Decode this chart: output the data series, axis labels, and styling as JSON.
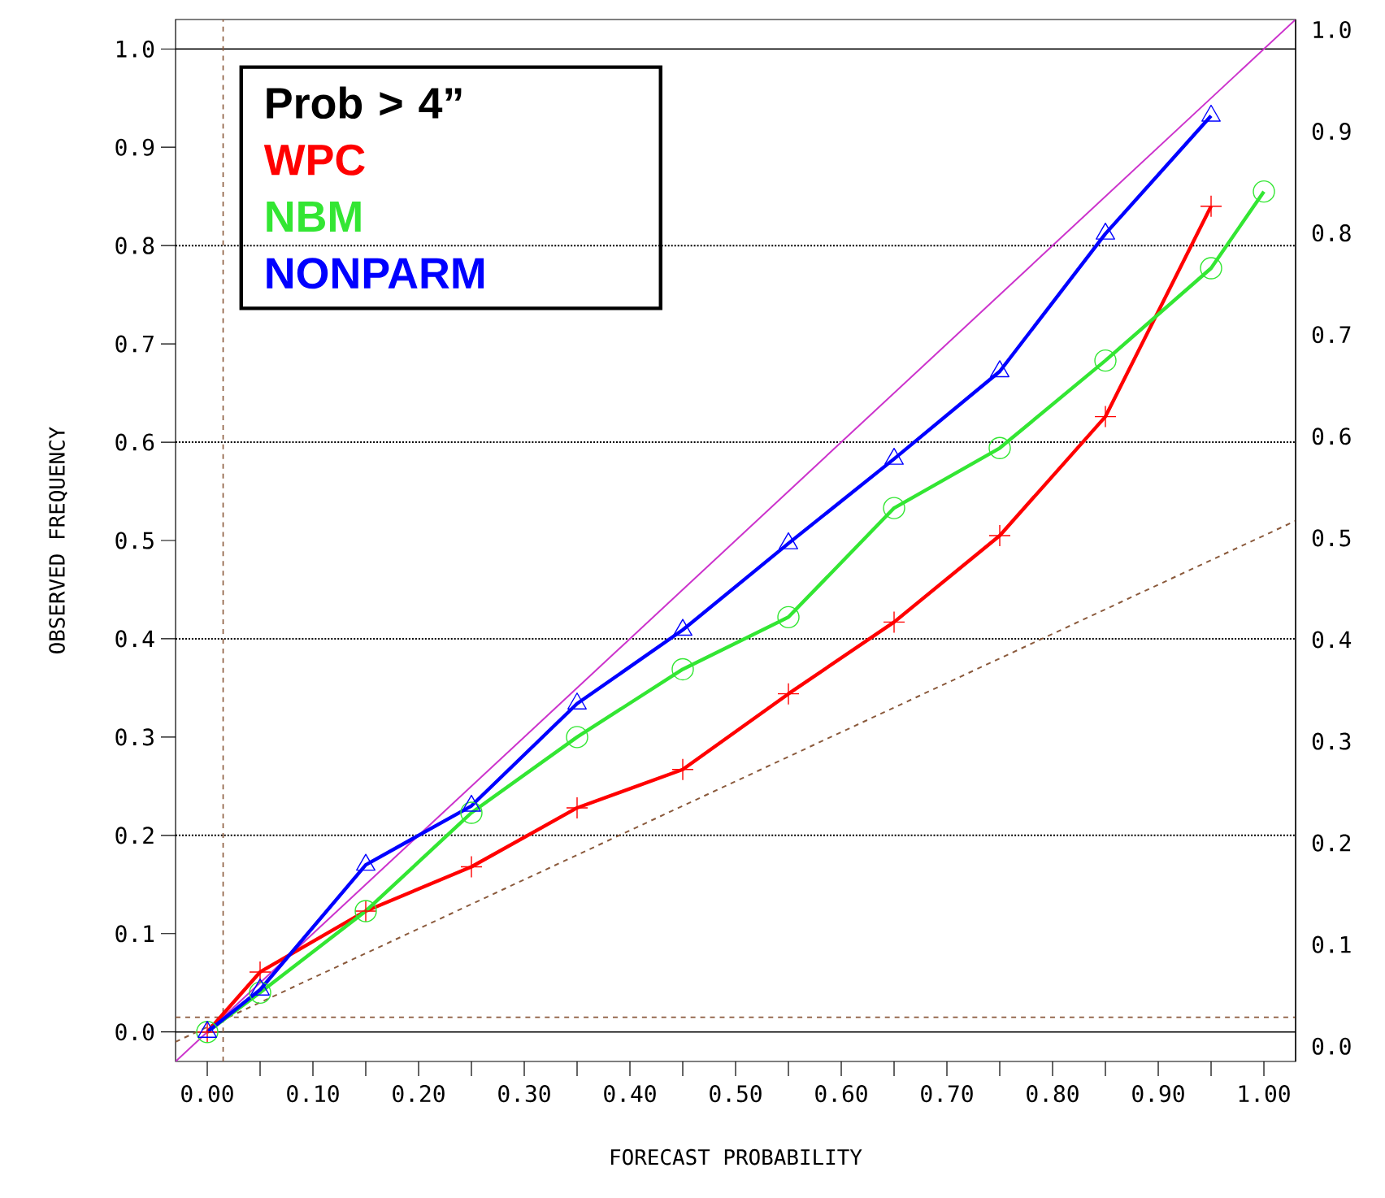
{
  "chart_data": {
    "type": "line",
    "xlabel": "FORECAST PROBABILITY",
    "ylabel": "OBSERVED FREQUENCY",
    "legend_title": "**Prob > 4”**",
    "legend": "top left",
    "x": [
      0.0,
      0.05,
      0.15,
      0.25,
      0.35,
      0.45,
      0.55,
      0.65,
      0.75,
      0.85,
      0.95
    ],
    "xlim": [
      -0.03,
      1.03
    ],
    "ylim": [
      -0.03,
      1.03
    ],
    "y2lim": [
      -0.015,
      1.01
    ],
    "xticks": [
      {
        "value": 0,
        "label": "0.00"
      },
      {
        "value": 0.05,
        "label": null
      },
      {
        "value": 0.1,
        "label": "0.10"
      },
      {
        "value": 0.15,
        "label": null
      },
      {
        "value": 0.2,
        "label": "0.20"
      },
      {
        "value": 0.25,
        "label": null
      },
      {
        "value": 0.3,
        "label": "0.30"
      },
      {
        "value": 0.35,
        "label": null
      },
      {
        "value": 0.4,
        "label": "0.40"
      },
      {
        "value": 0.45,
        "label": null
      },
      {
        "value": 0.5,
        "label": "0.50"
      },
      {
        "value": 0.55,
        "label": null
      },
      {
        "value": 0.6,
        "label": "0.60"
      },
      {
        "value": 0.65,
        "label": null
      },
      {
        "value": 0.7,
        "label": "0.70"
      },
      {
        "value": 0.75,
        "label": null
      },
      {
        "value": 0.8,
        "label": "0.80"
      },
      {
        "value": 0.85,
        "label": null
      },
      {
        "value": 0.9,
        "label": "0.90"
      },
      {
        "value": 0.95,
        "label": null
      },
      {
        "value": 1,
        "label": "1.00"
      }
    ],
    "yticks": [
      {
        "value": 0,
        "label": "0.0"
      },
      0.1,
      0.2,
      0.3,
      0.4,
      0.5,
      0.6,
      0.7,
      0.8,
      0.9,
      {
        "value": 1,
        "label": "1.0"
      }
    ],
    "y2ticks": [
      {
        "value": 0,
        "label": "0.0"
      },
      0.1,
      0.2,
      0.3,
      0.4,
      0.5,
      0.6,
      0.7,
      0.8,
      0.9,
      {
        "value": 1,
        "label": "1.0"
      }
    ],
    "ref_lines": [
      {
        "axis": "y",
        "value": 0,
        "color": "#000000",
        "line_style": "solid"
      },
      {
        "axis": "y",
        "value": 0.2,
        "color": "#000000",
        "line_style": "dotted"
      },
      {
        "axis": "y",
        "value": 0.4,
        "color": "#000000",
        "line_style": "dotted"
      },
      {
        "axis": "y",
        "value": 0.6,
        "color": "#000000",
        "line_style": "dotted"
      },
      {
        "axis": "y",
        "value": 0.8,
        "color": "#000000",
        "line_style": "dotted"
      },
      {
        "axis": "y",
        "value": 1,
        "color": "#000000",
        "line_style": "solid"
      },
      {
        "axis": "x",
        "value": 0.015,
        "color": "#8b5a3c",
        "line_style": "dashed"
      },
      {
        "axis": "y",
        "value": 0.015,
        "color": "#8b5a3c",
        "line_style": "dashed"
      }
    ],
    "series": [
      {
        "color": "#cc33cc",
        "x": [
          -0.03,
          1.03
        ],
        "values": [
          -0.03,
          1.03
        ],
        "marker": "none",
        "line_style": "solid"
      },
      {
        "color": "#8b5a3c",
        "x": [
          -0.03,
          1.03
        ],
        "values": [
          -0.01,
          0.52
        ],
        "marker": "none",
        "line_style": "dashed"
      },
      {
        "name": "WPC",
        "color": "#ff0000",
        "marker": "cross",
        "line_style": "solid",
        "values": [
          0.0,
          0.061,
          0.123,
          0.168,
          0.228,
          0.267,
          0.344,
          0.417,
          0.505,
          0.626,
          0.84
        ]
      },
      {
        "name": "NBM",
        "color": "#33e633",
        "marker": "circle",
        "line_style": "solid",
        "x": [
          0.0,
          0.05,
          0.15,
          0.25,
          0.35,
          0.45,
          0.55,
          0.65,
          0.75,
          0.85,
          0.95,
          1.0
        ],
        "values": [
          0.0,
          0.04,
          0.123,
          0.223,
          0.3,
          0.369,
          0.422,
          0.533,
          0.594,
          0.683,
          0.777,
          0.855
        ]
      },
      {
        "name": "NONPARM",
        "color": "#0000ff",
        "marker": "triangle",
        "line_style": "solid",
        "values": [
          0.0,
          0.043,
          0.17,
          0.23,
          0.334,
          0.409,
          0.497,
          0.583,
          0.672,
          0.812,
          0.932
        ]
      }
    ]
  }
}
